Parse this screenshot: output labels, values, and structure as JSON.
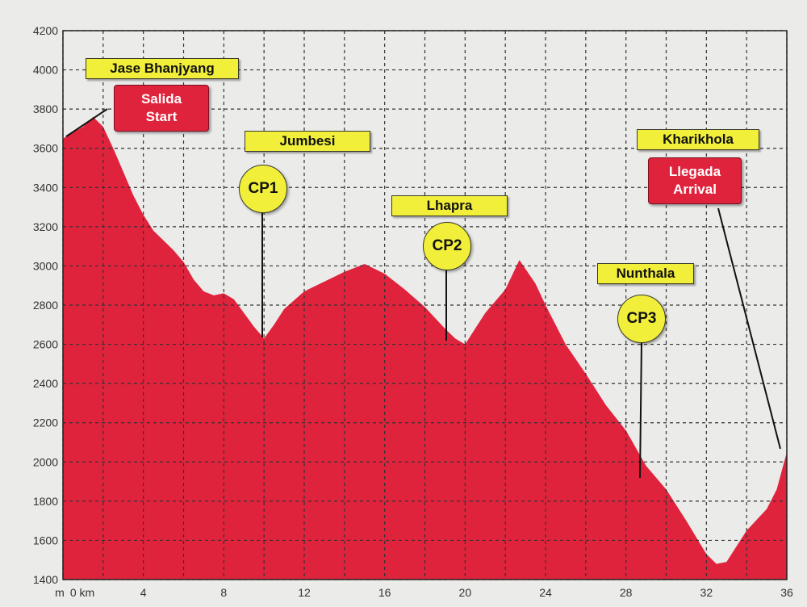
{
  "chart_data": {
    "type": "area",
    "title": "",
    "xlabel": "",
    "ylabel": "",
    "x_unit_prefix": "m",
    "x_first_tick_label": "0 km",
    "xlim": [
      0,
      36
    ],
    "ylim": [
      1400,
      4200
    ],
    "x_ticks": [
      4,
      8,
      12,
      16,
      20,
      24,
      28,
      32,
      36
    ],
    "y_ticks": [
      1400,
      1600,
      1800,
      2000,
      2200,
      2400,
      2600,
      2800,
      3000,
      3200,
      3400,
      3600,
      3800,
      4000,
      4200
    ],
    "grid": true,
    "fill_color": "#e0233c",
    "profile": [
      [
        0,
        3650
      ],
      [
        1,
        3710
      ],
      [
        1.5,
        3760
      ],
      [
        2,
        3710
      ],
      [
        2.5,
        3600
      ],
      [
        3,
        3480
      ],
      [
        3.5,
        3360
      ],
      [
        4,
        3260
      ],
      [
        4.5,
        3180
      ],
      [
        5,
        3130
      ],
      [
        5.5,
        3080
      ],
      [
        6,
        3020
      ],
      [
        6.5,
        2930
      ],
      [
        7,
        2870
      ],
      [
        7.5,
        2850
      ],
      [
        8,
        2860
      ],
      [
        8.5,
        2830
      ],
      [
        9,
        2760
      ],
      [
        9.5,
        2690
      ],
      [
        10,
        2630
      ],
      [
        10.5,
        2700
      ],
      [
        11,
        2780
      ],
      [
        12,
        2870
      ],
      [
        13,
        2920
      ],
      [
        14,
        2970
      ],
      [
        15,
        3010
      ],
      [
        16,
        2960
      ],
      [
        17,
        2880
      ],
      [
        18,
        2790
      ],
      [
        19,
        2680
      ],
      [
        19.5,
        2630
      ],
      [
        20,
        2600
      ],
      [
        20.5,
        2680
      ],
      [
        21,
        2760
      ],
      [
        22,
        2880
      ],
      [
        22.7,
        3030
      ],
      [
        23.5,
        2910
      ],
      [
        24,
        2800
      ],
      [
        25,
        2600
      ],
      [
        26,
        2450
      ],
      [
        27,
        2290
      ],
      [
        28,
        2160
      ],
      [
        29,
        1980
      ],
      [
        30,
        1860
      ],
      [
        31,
        1700
      ],
      [
        32,
        1530
      ],
      [
        32.5,
        1480
      ],
      [
        33,
        1490
      ],
      [
        34,
        1650
      ],
      [
        35,
        1760
      ],
      [
        35.5,
        1860
      ],
      [
        36,
        2050
      ]
    ],
    "waypoints": [
      {
        "name": "Jase Bhanjyang",
        "marker": "Salida\nStart",
        "km": 0
      },
      {
        "name": "Jumbesi",
        "marker": "CP1",
        "km": 10
      },
      {
        "name": "Lhapra",
        "marker": "CP2",
        "km": 19.5
      },
      {
        "name": "Nunthala",
        "marker": "CP3",
        "km": 29
      },
      {
        "name": "Kharikhola",
        "marker": "Llegada\nArrival",
        "km": 36
      }
    ]
  },
  "labels": {
    "start_place": "Jase Bhanjyang",
    "start_marker_line1": "Salida",
    "start_marker_line2": "Start",
    "cp1_place": "Jumbesi",
    "cp1_marker": "CP1",
    "cp2_place": "Lhapra",
    "cp2_marker": "CP2",
    "cp3_place": "Nunthala",
    "cp3_marker": "CP3",
    "finish_place": "Kharikhola",
    "finish_marker_line1": "Llegada",
    "finish_marker_line2": "Arrival"
  },
  "colors": {
    "profile_fill": "#e0233c",
    "label_yellow": "#f1ef3a",
    "label_red": "#e0233c",
    "grid": "#333333"
  }
}
